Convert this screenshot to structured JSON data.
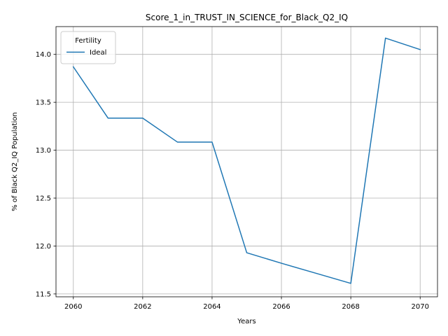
{
  "chart_data": {
    "type": "line",
    "title": "Score_1_in_TRUST_IN_SCIENCE_for_Black_Q2_IQ",
    "xlabel": "Years",
    "ylabel": "% of Black Q2_IQ Population",
    "x": [
      2060,
      2061,
      2062,
      2063,
      2064,
      2065,
      2066,
      2067,
      2068,
      2069,
      2070
    ],
    "series": [
      {
        "name": "Ideal",
        "color": "#1f77b4",
        "values": [
          13.87,
          13.335,
          13.335,
          13.085,
          13.085,
          11.93,
          11.82,
          11.715,
          11.61,
          14.17,
          14.05
        ]
      }
    ],
    "xlim": [
      2059.5,
      2070.5
    ],
    "ylim": [
      11.47,
      14.29
    ],
    "xticks": [
      2060,
      2062,
      2064,
      2066,
      2068,
      2070
    ],
    "yticks": [
      11.5,
      12.0,
      12.5,
      13.0,
      13.5,
      14.0
    ],
    "ytick_labels": [
      "11.5",
      "12.0",
      "12.5",
      "13.0",
      "13.5",
      "14.0"
    ],
    "grid": true,
    "legend_title": "Fertility",
    "legend_position": "top-left"
  }
}
